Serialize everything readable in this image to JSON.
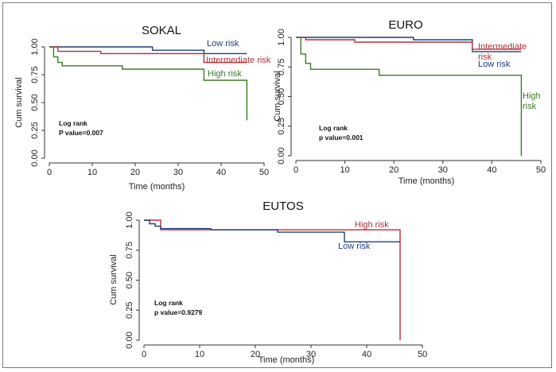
{
  "chart_data": [
    {
      "id": "sokal",
      "type": "line",
      "title": "SOKAL",
      "xlabel": "Time (months)",
      "ylabel": "Cum survival",
      "xlim": [
        0,
        50
      ],
      "ylim": [
        0,
        1
      ],
      "xticks": [
        "0",
        "10",
        "20",
        "30",
        "40",
        "50"
      ],
      "yticks": [
        "0.00",
        "0.25",
        "0.50",
        "0.75",
        "1.00"
      ],
      "annotation": [
        "Log rank",
        "P value=0.007"
      ],
      "series": [
        {
          "name": "Low risk",
          "color": "#1f3f7a",
          "x": [
            0,
            24,
            24,
            36,
            36,
            46
          ],
          "y": [
            1.0,
            1.0,
            0.97,
            0.97,
            0.94,
            0.94
          ]
        },
        {
          "name": "Intermediate risk",
          "color": "#b0303a",
          "x": [
            0,
            2,
            2,
            12,
            12,
            36,
            36,
            46
          ],
          "y": [
            1.0,
            1.0,
            0.96,
            0.96,
            0.94,
            0.94,
            0.86,
            0.86
          ]
        },
        {
          "name": "High risk",
          "color": "#3d7a25",
          "x": [
            0,
            1,
            1,
            2,
            2,
            3,
            3,
            17,
            17,
            36,
            36,
            46,
            46
          ],
          "y": [
            1.0,
            1.0,
            0.91,
            0.91,
            0.86,
            0.86,
            0.83,
            0.83,
            0.8,
            0.8,
            0.7,
            0.7,
            0.34
          ]
        }
      ]
    },
    {
      "id": "euro",
      "type": "line",
      "title": "EURO",
      "xlabel": "Time (months)",
      "ylabel": "Cum survival",
      "xlim": [
        0,
        50
      ],
      "ylim": [
        0,
        1
      ],
      "xticks": [
        "0",
        "10",
        "20",
        "30",
        "40",
        "50"
      ],
      "yticks": [
        "0.00",
        "0.25",
        "0.50",
        "0.75",
        "1.00"
      ],
      "annotation": [
        "Log rank",
        "p value=0.001"
      ],
      "series": [
        {
          "name": "Low risk",
          "color": "#1f3f7a",
          "x": [
            0,
            24,
            24,
            36,
            36,
            46
          ],
          "y": [
            1.0,
            1.0,
            0.98,
            0.98,
            0.88,
            0.88
          ]
        },
        {
          "name": "Intermediate risk",
          "color": "#b0303a",
          "x": [
            0,
            2,
            2,
            12,
            12,
            36,
            36,
            46
          ],
          "y": [
            1.0,
            1.0,
            0.98,
            0.98,
            0.96,
            0.96,
            0.9,
            0.9
          ]
        },
        {
          "name": "High risk",
          "color": "#3d7a25",
          "x": [
            0,
            1,
            1,
            2,
            2,
            3,
            3,
            17,
            17,
            46,
            46
          ],
          "y": [
            1.0,
            1.0,
            0.86,
            0.86,
            0.78,
            0.78,
            0.73,
            0.73,
            0.68,
            0.68,
            0.0
          ]
        }
      ]
    },
    {
      "id": "eutos",
      "type": "line",
      "title": "EUTOS",
      "xlabel": "Time (months)",
      "ylabel": "Cum survival",
      "xlim": [
        0,
        50
      ],
      "ylim": [
        0,
        1
      ],
      "xticks": [
        "0",
        "10",
        "20",
        "30",
        "40",
        "50"
      ],
      "yticks": [
        "0.00",
        "0.25",
        "0.50",
        "0.75",
        "1.00"
      ],
      "annotation": [
        "Log rank",
        "p value=0.9279"
      ],
      "series": [
        {
          "name": "High risk",
          "color": "#b0303a",
          "x": [
            0,
            3,
            3,
            46,
            46
          ],
          "y": [
            1.0,
            1.0,
            0.92,
            0.92,
            0.0
          ]
        },
        {
          "name": "Low risk",
          "color": "#1f3f7a",
          "x": [
            0,
            1,
            1,
            2,
            2,
            3,
            3,
            12,
            12,
            24,
            24,
            36,
            36,
            46
          ],
          "y": [
            1.0,
            1.0,
            0.97,
            0.97,
            0.95,
            0.95,
            0.93,
            0.93,
            0.92,
            0.92,
            0.9,
            0.9,
            0.82,
            0.82
          ]
        }
      ]
    }
  ]
}
